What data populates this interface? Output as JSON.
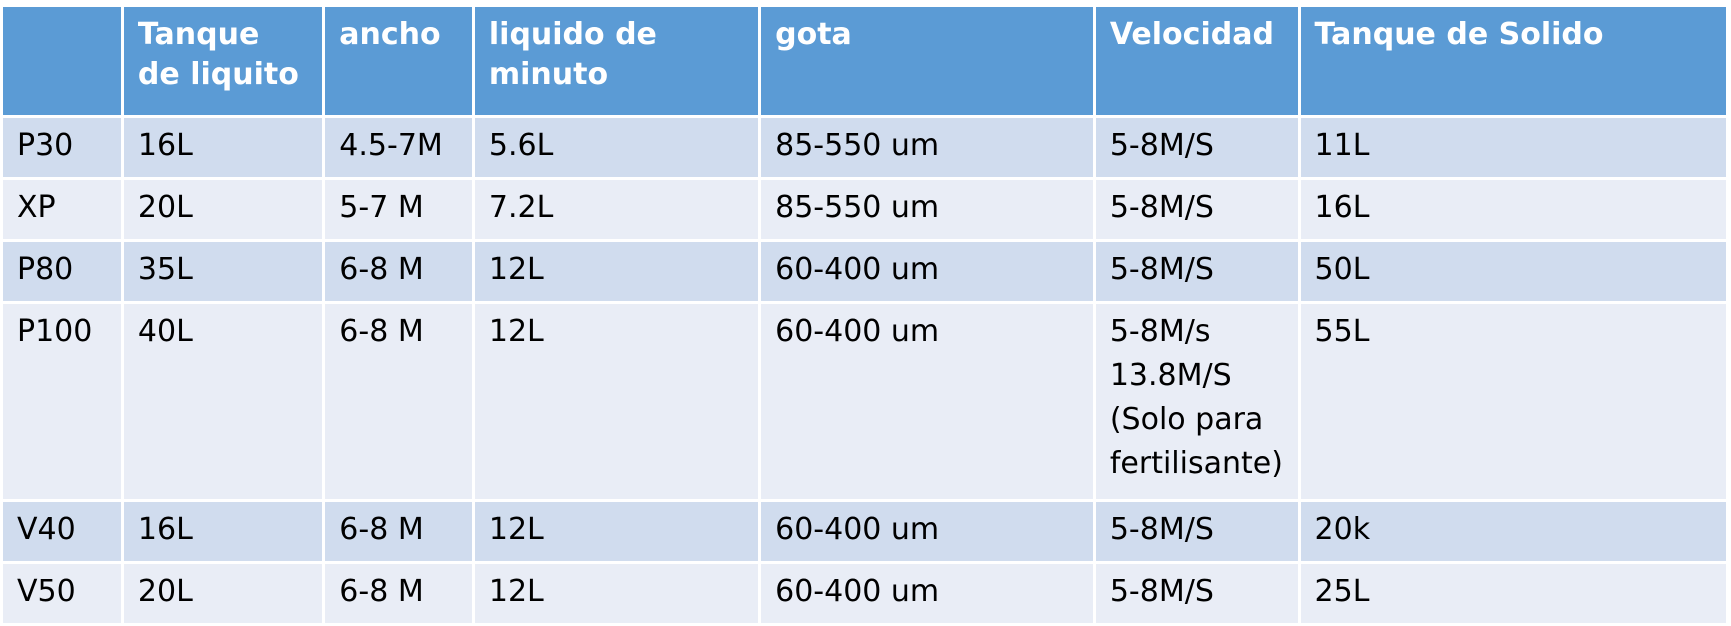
{
  "table": {
    "headers": [
      "",
      "Tanque de liquito",
      "ancho",
      "liquido de minuto",
      "gota",
      "Velocidad",
      "Tanque de Solido"
    ],
    "rows": [
      [
        "P30",
        "16L",
        "4.5-7M",
        "5.6L",
        "85-550 um",
        "5-8M/S",
        "11L"
      ],
      [
        "XP",
        "20L",
        "5-7 M",
        "7.2L",
        "85-550 um",
        "5-8M/S",
        "16L"
      ],
      [
        "P80",
        "35L",
        "6-8 M",
        "12L",
        "60-400 um",
        "5-8M/S",
        "50L"
      ],
      [
        "P100",
        "40L",
        "6-8 M",
        "12L",
        "60-400 um",
        "5-8M/s\n13.8M/S\n(Solo para\nfertilisante)",
        "55L"
      ],
      [
        "V40",
        "16L",
        "6-8 M",
        "12L",
        "60-400 um",
        "5-8M/S",
        "20k"
      ],
      [
        "V50",
        "20L",
        "6-8 M",
        "12L",
        "60-400 um",
        "5-8M/S",
        "25L"
      ]
    ]
  },
  "colors": {
    "header_bg": "#5b9bd5",
    "header_text": "#ffffff",
    "row_odd_bg": "#d0dcee",
    "row_even_bg": "#e9edf6"
  }
}
